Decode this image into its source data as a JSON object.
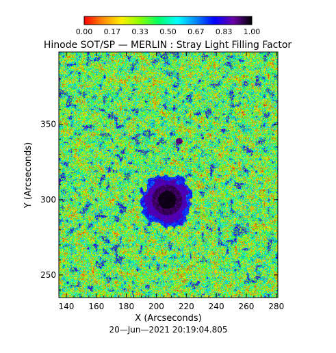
{
  "chart_data": {
    "type": "heatmap",
    "title": "Hinode SOT/SP — MERLIN : Stray Light Filling Factor",
    "xlabel": "X (Arcseconds)",
    "ylabel": "Y (Arcseconds)",
    "timestamp": "20—Jun—2021 20:19:04.805",
    "xlim": [
      135,
      281
    ],
    "ylim": [
      235,
      398
    ],
    "xticks": [
      140,
      160,
      180,
      200,
      220,
      240,
      260,
      280
    ],
    "yticks": [
      250,
      300,
      350
    ],
    "colorbar": {
      "range": [
        0.0,
        1.0
      ],
      "ticks": [
        "0.00",
        "0.17",
        "0.33",
        "0.50",
        "0.67",
        "0.83",
        "1.00"
      ],
      "colors": [
        "#ff0000",
        "#ff8800",
        "#ffee00",
        "#88ff00",
        "#00ff66",
        "#00ffff",
        "#0088ff",
        "#0000ff",
        "#6a00a8",
        "#000000"
      ]
    },
    "colormap": "rainbow",
    "features": {
      "sunspot_umbra": {
        "x": 207,
        "y": 300,
        "value": 1.0
      },
      "sunspot_penumbra": {
        "x": 206,
        "y": 301,
        "value": 0.85
      },
      "pore": {
        "x": 215,
        "y": 339,
        "value": 0.88
      },
      "background_level": 0.4
    }
  }
}
